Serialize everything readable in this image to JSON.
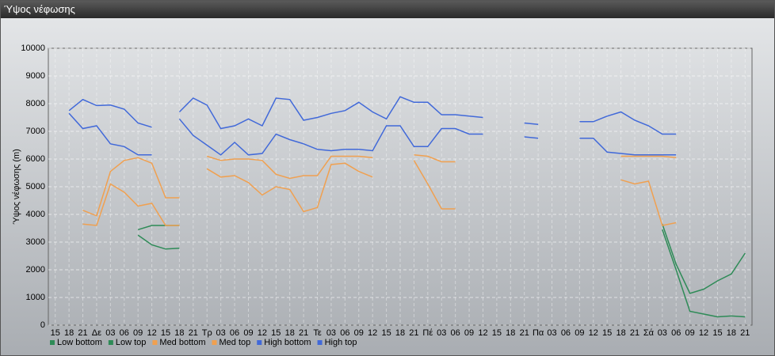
{
  "window_title": "Ύψος νέφωσης",
  "chart_data": {
    "type": "line",
    "ylabel": "Ύψος νέφωσης (m)",
    "categories": [
      "15",
      "18",
      "21",
      "Δε",
      "03",
      "06",
      "09",
      "12",
      "15",
      "18",
      "21",
      "Τρ",
      "03",
      "06",
      "09",
      "12",
      "15",
      "18",
      "21",
      "Τε",
      "03",
      "06",
      "09",
      "12",
      "15",
      "18",
      "21",
      "Πέ",
      "03",
      "06",
      "09",
      "12",
      "15",
      "18",
      "21",
      "Πα",
      "03",
      "06",
      "09",
      "12",
      "15",
      "18",
      "21",
      "Σά",
      "03",
      "06",
      "09",
      "12",
      "15",
      "18",
      "21"
    ],
    "ylim": [
      0,
      10000
    ],
    "yticks": [
      0,
      1000,
      2000,
      3000,
      4000,
      5000,
      6000,
      7000,
      8000,
      9000,
      10000
    ],
    "grid": true,
    "series": [
      {
        "name": "Low bottom",
        "color": "#2e8b57",
        "values": [
          null,
          null,
          null,
          null,
          null,
          null,
          3250,
          2900,
          2750,
          2780,
          null,
          null,
          null,
          null,
          null,
          null,
          null,
          null,
          null,
          null,
          null,
          null,
          null,
          null,
          null,
          null,
          null,
          null,
          null,
          null,
          null,
          null,
          null,
          null,
          null,
          null,
          null,
          null,
          null,
          null,
          null,
          null,
          null,
          null,
          3450,
          2000,
          500,
          400,
          300,
          330,
          300
        ]
      },
      {
        "name": "Low top",
        "color": "#2e8b57",
        "values": [
          null,
          null,
          null,
          null,
          null,
          null,
          3450,
          3600,
          3600,
          3600,
          null,
          null,
          null,
          null,
          null,
          null,
          null,
          null,
          null,
          null,
          null,
          null,
          null,
          null,
          null,
          null,
          null,
          null,
          null,
          null,
          null,
          null,
          null,
          null,
          null,
          null,
          null,
          null,
          null,
          null,
          null,
          null,
          null,
          null,
          3650,
          2200,
          1150,
          1300,
          1600,
          1850,
          2600
        ]
      },
      {
        "name": "Med bottom",
        "color": "#f0a050",
        "values": [
          null,
          null,
          3650,
          3600,
          5100,
          4800,
          4300,
          4400,
          3600,
          3600,
          null,
          5650,
          5350,
          5400,
          5150,
          4700,
          5000,
          4900,
          4100,
          4250,
          5800,
          5850,
          5550,
          5350,
          null,
          null,
          5950,
          5100,
          4200,
          4200,
          null,
          null,
          null,
          null,
          null,
          null,
          null,
          null,
          null,
          null,
          null,
          5250,
          5100,
          5200,
          3600,
          3700,
          null,
          null,
          null,
          null,
          null
        ]
      },
      {
        "name": "Med top",
        "color": "#f0a050",
        "values": [
          null,
          null,
          4150,
          3950,
          5550,
          5950,
          6050,
          5850,
          4600,
          4600,
          null,
          6100,
          5950,
          6000,
          6000,
          5950,
          5450,
          5300,
          5400,
          5400,
          6100,
          6100,
          6100,
          6050,
          null,
          null,
          6150,
          6100,
          5900,
          5900,
          null,
          null,
          null,
          null,
          null,
          null,
          null,
          null,
          null,
          null,
          null,
          6100,
          6100,
          6100,
          6100,
          6050,
          null,
          null,
          null,
          null,
          null
        ]
      },
      {
        "name": "High bottom",
        "color": "#4169d9",
        "values": [
          null,
          7650,
          7100,
          7200,
          6550,
          6450,
          6150,
          6150,
          null,
          7450,
          6850,
          6500,
          6150,
          6600,
          6150,
          6200,
          6900,
          6700,
          6550,
          6350,
          6300,
          6350,
          6350,
          6300,
          7200,
          7200,
          6450,
          6450,
          7100,
          7100,
          6900,
          6900,
          null,
          null,
          6800,
          6750,
          null,
          null,
          6750,
          6750,
          6250,
          6200,
          6150,
          6150,
          6150,
          6150,
          null,
          null,
          null,
          null,
          null
        ]
      },
      {
        "name": "High top",
        "color": "#4169d9",
        "values": [
          null,
          7750,
          8150,
          7930,
          7950,
          7800,
          7300,
          7150,
          null,
          7700,
          8200,
          7950,
          7100,
          7200,
          7450,
          7200,
          8200,
          8150,
          7400,
          7500,
          7650,
          7750,
          8050,
          7700,
          7450,
          8250,
          8050,
          8050,
          7600,
          7600,
          7550,
          7500,
          null,
          null,
          7300,
          7250,
          null,
          null,
          7350,
          7350,
          7550,
          7700,
          7400,
          7200,
          6900,
          6900,
          null,
          null,
          null,
          null,
          null
        ]
      }
    ]
  }
}
